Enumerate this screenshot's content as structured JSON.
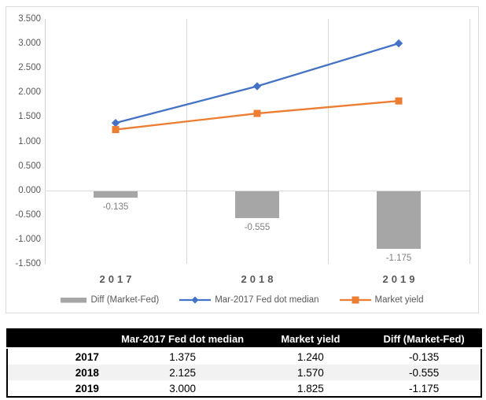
{
  "colors": {
    "fed_line": "#4472c4",
    "market_line": "#ed7d31",
    "diff_bar": "#a6a6a6",
    "gridline": "#d9d9d9",
    "axis_text": "#595959",
    "bar_label_text": "#808080",
    "table_header_bg": "#000000",
    "table_header_text": "#ffffff",
    "table_stripe": "#f2f2f2"
  },
  "chart_data": {
    "type": "combo",
    "categories": [
      "2017",
      "2018",
      "2019"
    ],
    "series": [
      {
        "name": "Diff (Market-Fed)",
        "type": "bar",
        "color": "#a6a6a6",
        "values": [
          -0.135,
          -0.555,
          -1.175
        ]
      },
      {
        "name": "Mar-2017 Fed dot median",
        "type": "line",
        "marker": "diamond",
        "color": "#4472c4",
        "values": [
          1.375,
          2.125,
          3.0
        ]
      },
      {
        "name": "Market yield",
        "type": "line",
        "marker": "square",
        "color": "#ed7d31",
        "values": [
          1.24,
          1.57,
          1.825
        ]
      }
    ],
    "bar_value_labels": [
      "-0.135",
      "-0.555",
      "-1.175"
    ],
    "y_tick_labels": [
      "3.500",
      "3.000",
      "2.500",
      "2.000",
      "1.500",
      "1.000",
      "0.500",
      "0.000",
      "-0.500",
      "-1.000",
      "-1.500"
    ],
    "ylim": [
      -1.5,
      3.5
    ],
    "ytick_step": 0.5,
    "grid": "vertical-only",
    "legend_position": "bottom",
    "title": "",
    "xlabel": "",
    "ylabel": ""
  },
  "table": {
    "columns": [
      "",
      "Mar-2017 Fed dot median",
      "Market yield",
      "Diff (Market-Fed)"
    ],
    "rows": [
      {
        "label": "2017",
        "values": [
          "1.375",
          "1.240",
          "-0.135"
        ]
      },
      {
        "label": "2018",
        "values": [
          "2.125",
          "1.570",
          "-0.555"
        ]
      },
      {
        "label": "2019",
        "values": [
          "3.000",
          "1.825",
          "-1.175"
        ]
      }
    ]
  }
}
